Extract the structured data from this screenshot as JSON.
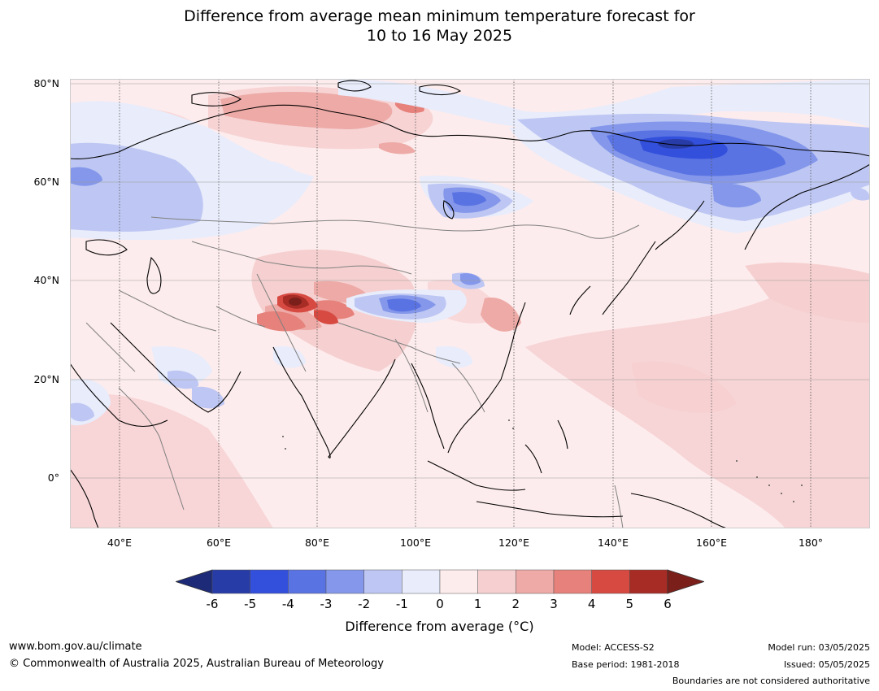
{
  "title_line1": "Difference from average mean minimum temperature forecast for",
  "title_line2": "10 to 16 May 2025",
  "lat_labels": [
    "80°N",
    "60°N",
    "40°N",
    "20°N",
    "0°"
  ],
  "lon_labels": [
    "40°E",
    "60°E",
    "80°E",
    "100°E",
    "120°E",
    "140°E",
    "160°E",
    "180°"
  ],
  "colorbar": {
    "ticks": [
      "-6",
      "-5",
      "-4",
      "-3",
      "-2",
      "-1",
      "0",
      "1",
      "2",
      "3",
      "4",
      "5",
      "6"
    ],
    "colors": [
      "#283ca8",
      "#3350dc",
      "#5a73e3",
      "#8497ea",
      "#bec7f3",
      "#e8ecfb",
      "#fdecec",
      "#f6d0d0",
      "#edaaa6",
      "#e6817b",
      "#d64a42",
      "#a72c25"
    ],
    "under_color": "#1c2a78",
    "over_color": "#7a1f1a",
    "label": "Difference from average (°C)"
  },
  "colors": {
    "background_map": "#fdeced",
    "coast": "#000000",
    "border": "#808080",
    "grid": "#999999"
  },
  "footer": {
    "url": "www.bom.gov.au/climate",
    "copyright": "© Commonwealth of Australia 2025, Australian Bureau of Meteorology",
    "model": "Model: ACCESS-S2",
    "base_period": "Base period: 1981-2018",
    "model_run": "Model run: 03/05/2025",
    "issued": "Issued: 05/05/2025",
    "boundaries": "Boundaries are not considered authoritative"
  }
}
